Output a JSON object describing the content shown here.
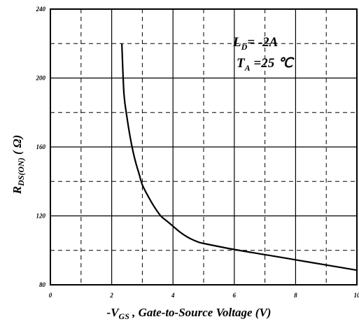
{
  "chart_data": {
    "type": "line",
    "title": "",
    "xlabel": {
      "prefix": "-V",
      "sub": "GS",
      "rest": " , Gate-to-Source Voltage (V)"
    },
    "ylabel": {
      "prefix": "R",
      "sub": "DS(ON)",
      "rest": " ( Ω)"
    },
    "xlim": [
      0,
      10
    ],
    "ylim": [
      80,
      240
    ],
    "x_ticks": [
      "0",
      "2",
      "4",
      "6",
      "8",
      "10"
    ],
    "y_ticks": [
      "80",
      "120",
      "160",
      "200",
      "240"
    ],
    "grid": {
      "solid_x": [
        2,
        4,
        6,
        8
      ],
      "dashed_x": [
        1,
        3,
        5,
        7,
        9
      ],
      "solid_y": [
        120,
        160,
        200
      ],
      "dashed_y": [
        100,
        140,
        180,
        220
      ]
    },
    "annotations": [
      {
        "main": "L",
        "sub": "D",
        "rest": "= -2A"
      },
      {
        "main": "T",
        "sub": "A",
        "rest": " =25 ℃"
      }
    ],
    "series": [
      {
        "color": "#000000",
        "x": [
          2.33,
          2.4,
          2.5,
          2.6,
          2.7,
          2.8,
          2.9,
          3.0,
          3.2,
          3.4,
          3.6,
          3.8,
          4.0,
          4.2,
          4.4,
          4.6,
          4.8,
          5.0,
          6.0,
          7.0,
          8.0,
          9.0,
          10.0
        ],
        "y": [
          220,
          191,
          177,
          166,
          157,
          150,
          144,
          138,
          131,
          125,
          120,
          117,
          114,
          111,
          108.5,
          106.5,
          105,
          104,
          100.5,
          97.5,
          94.5,
          91.5,
          88.5
        ]
      }
    ]
  }
}
